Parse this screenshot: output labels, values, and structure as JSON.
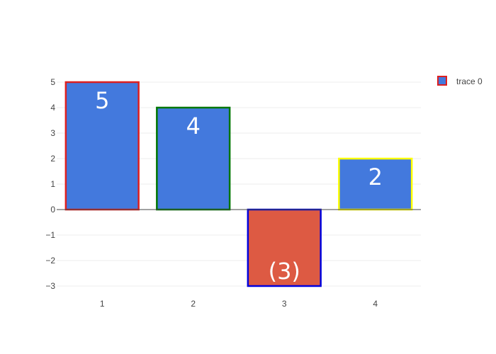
{
  "chart_data": {
    "type": "bar",
    "categories": [
      "1",
      "2",
      "3",
      "4"
    ],
    "values": [
      5,
      4,
      -3,
      2
    ],
    "text_labels": [
      "5",
      "4",
      "(3)",
      "2"
    ],
    "fill_colors": [
      "#4379dd",
      "#4379dd",
      "#dd5a43",
      "#4379dd"
    ],
    "border_colors": [
      "#dd2020",
      "#007700",
      "#0000dd",
      "#ffff00"
    ],
    "ylim": [
      -3,
      5
    ],
    "yticks": [
      {
        "value": 5,
        "label": "5"
      },
      {
        "value": 4,
        "label": "4"
      },
      {
        "value": 3,
        "label": "3"
      },
      {
        "value": 2,
        "label": "2"
      },
      {
        "value": 1,
        "label": "1"
      },
      {
        "value": 0,
        "label": "0"
      },
      {
        "value": -1,
        "label": "−1"
      },
      {
        "value": -2,
        "label": "−2"
      },
      {
        "value": -3,
        "label": "−3"
      }
    ],
    "grid": true,
    "legend": {
      "placement": "top-right",
      "entries": [
        {
          "name": "trace 0",
          "fill": "#4379dd",
          "border": "#dd2020"
        }
      ]
    }
  }
}
